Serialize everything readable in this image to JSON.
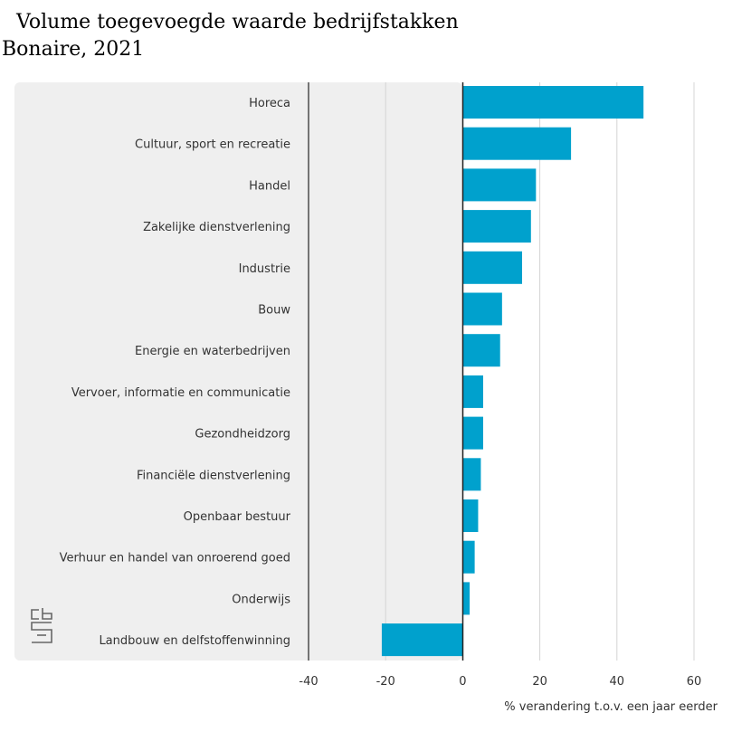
{
  "chart_data": {
    "type": "bar",
    "orientation": "horizontal",
    "title": "Volume toegevoegde waarde bedrijfstakken Bonaire, 2021",
    "xlabel": "% verandering t.o.v. een jaar eerder",
    "ylabel": "",
    "xlim": [
      -40,
      60
    ],
    "xticks": [
      "-40",
      "-20",
      "0",
      "20",
      "40",
      "60"
    ],
    "grid": true,
    "categories": [
      "Horeca",
      "Cultuur, sport en recreatie",
      "Handel",
      "Zakelijke dienstverlening",
      "Industrie",
      "Bouw",
      "Energie en waterbedrijven",
      "Vervoer, informatie en communicatie",
      "Gezondheidzorg",
      "Financiële dienstverlening",
      "Openbaar bestuur",
      "Verhuur en handel van onroerend goed",
      "Onderwijs",
      "Landbouw en delfstoffenwinning"
    ],
    "values": [
      46.9,
      28.1,
      19.0,
      17.7,
      15.4,
      10.2,
      9.7,
      5.3,
      5.3,
      4.7,
      4.0,
      3.1,
      1.8,
      -21.0
    ],
    "colors": {
      "bar": "#00a1cd",
      "panel": "#efefef",
      "grid": "#d4d4d4",
      "axis": "#222222"
    }
  },
  "logo": {
    "name": "cbs-logo",
    "text": "cbs"
  }
}
